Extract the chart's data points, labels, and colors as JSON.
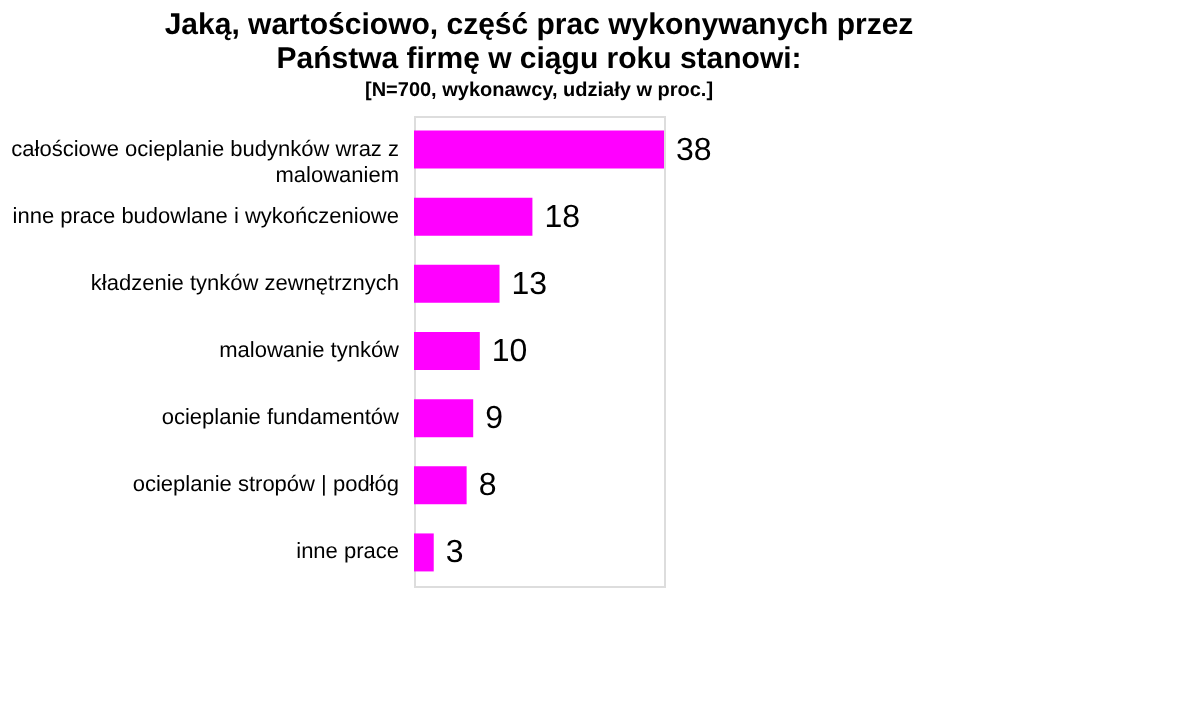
{
  "chart_data": {
    "type": "bar",
    "orientation": "horizontal",
    "title": [
      "Jaką, wartościowo, część prac wykonywanych przez",
      "Państwa firmę w ciągu roku stanowi:"
    ],
    "subtitle": "[N=700, wykonawcy, udziały w proc.]",
    "categories": [
      "całościowe ocieplanie budynków wraz z malowaniem",
      "inne prace budowlane i wykończeniowe",
      "kładzenie tynków zewnętrznych",
      "malowanie tynków",
      "ocieplanie fundamentów",
      "ocieplanie stropów | podłóg",
      "inne prace"
    ],
    "values": [
      38,
      18,
      13,
      10,
      9,
      8,
      3
    ],
    "color": "#ff00ff",
    "data_labels": true
  }
}
